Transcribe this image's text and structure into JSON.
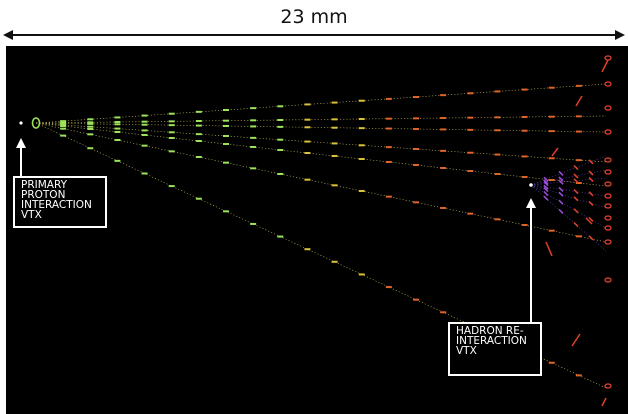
{
  "scale": {
    "label": "23 mm"
  },
  "primary_vertex": {
    "lines": [
      "PRIMARY",
      "PROTON",
      "INTERACTION",
      "VTX"
    ]
  },
  "secondary_vertex": {
    "lines": [
      "HADRON RE-",
      "INTERACTION",
      "VTX"
    ]
  },
  "colors": {
    "background": "#000000",
    "track": "#e6d86a",
    "hit_green": "#9be35a",
    "hit_orange": "#e0642a",
    "hit_red": "#e0402a",
    "hit_purple": "#9a4bd6",
    "hit_yellow": "#d9c23a"
  }
}
